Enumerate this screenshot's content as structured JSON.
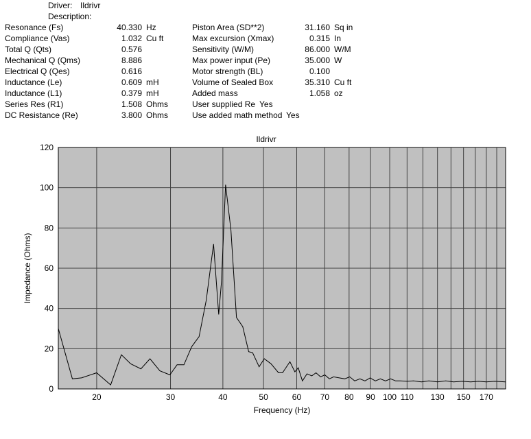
{
  "header": {
    "driver_label": "Driver:",
    "driver_name": "Ildrivr",
    "description_label": "Description:"
  },
  "parameters": {
    "left": [
      {
        "label": "Resonance (Fs)",
        "value": "40.330",
        "unit": "Hz"
      },
      {
        "label": "Compliance (Vas)",
        "value": "1.032",
        "unit": "Cu ft"
      },
      {
        "label": "Total Q (Qts)",
        "value": "0.576"
      },
      {
        "label": "Mechanical Q (Qms)",
        "value": "8.886"
      },
      {
        "label": "Electrical Q (Qes)",
        "value": "0.616"
      },
      {
        "label": "Inductance (Le)",
        "value": "0.609",
        "unit": "mH"
      },
      {
        "label": "Inductance (L1)",
        "value": "0.379",
        "unit": "mH"
      },
      {
        "label": "Series Res (R1)",
        "value": "1.508",
        "unit": "Ohms"
      },
      {
        "label": "DC Resistance (Re)",
        "value": "3.800",
        "unit": "Ohms"
      }
    ],
    "right": [
      {
        "label": "Piston Area (SD**2)",
        "value": "31.160",
        "unit": "Sq in"
      },
      {
        "label": "Max excursion (Xmax)",
        "value": "0.315",
        "unit": "In"
      },
      {
        "label": "Sensitivity (W/M)",
        "value": "86.000",
        "unit": "W/M"
      },
      {
        "label": "Max power input (Pe)",
        "value": "35.000",
        "unit": "W"
      },
      {
        "label": "Motor strength (BL)",
        "value": "0.100"
      },
      {
        "label": "Volume of Sealed Box",
        "value": "35.310",
        "unit": "Cu ft"
      },
      {
        "label": "Added mass",
        "value": "1.058",
        "unit": "oz"
      }
    ],
    "flags": [
      {
        "label": "User supplied Re",
        "value": "Yes"
      },
      {
        "label": "Use added math method",
        "value": "Yes"
      }
    ]
  },
  "chart_data": {
    "type": "line",
    "title": "Ildrivr",
    "x_label": "Frequency (Hz)",
    "y_label": "Impedance (Ohms)",
    "xscale": "log",
    "xlim": [
      16.2,
      189
    ],
    "ylim": [
      0,
      120
    ],
    "xticks": [
      20,
      30,
      40,
      50,
      60,
      70,
      80,
      90,
      100,
      110,
      130,
      150,
      170
    ],
    "xgrid_minor": [
      120,
      140,
      160,
      180
    ],
    "yticks": [
      0,
      20,
      40,
      60,
      80,
      100,
      120
    ],
    "grid": true,
    "background": "#c0c0c0",
    "series": [
      {
        "color": "#000000",
        "x": [
          16.2,
          17.5,
          18.4,
          20,
          21.6,
          22.9,
          24.1,
          25.5,
          26.8,
          28.3,
          29.9,
          31.1,
          32.3,
          33.7,
          35.1,
          36.5,
          38.0,
          39.1,
          39.7,
          40.6,
          41.8,
          43.1,
          44.6,
          46.1,
          47.1,
          48.8,
          50.2,
          52.1,
          54.3,
          55.5,
          57.8,
          59.4,
          60.5,
          61.9,
          63.5,
          65.2,
          66.7,
          68.4,
          70.0,
          71.8,
          73.5,
          75.8,
          78.1,
          80.3,
          82.5,
          84.9,
          87.3,
          89.8,
          92.4,
          95,
          97.7,
          100.5,
          103.3,
          106,
          110,
          114,
          119,
          124,
          130,
          136,
          142,
          149,
          156,
          163,
          170,
          178,
          189
        ],
        "values": [
          30,
          5,
          5.5,
          8,
          2,
          17,
          12.5,
          10,
          15,
          9,
          7,
          12,
          12,
          21,
          26,
          44,
          72,
          37,
          53.5,
          101.5,
          79,
          35.5,
          31,
          18.5,
          18,
          11,
          15,
          12.5,
          8,
          8,
          13.5,
          8.5,
          10.5,
          4,
          7.5,
          6.5,
          8,
          6,
          7,
          5,
          6,
          5.5,
          5,
          6,
          4,
          5,
          4,
          5.5,
          4,
          5,
          4,
          5,
          4,
          4,
          3.8,
          4,
          3.5,
          4,
          3.5,
          4,
          3.5,
          3.8,
          3.5,
          3.8,
          3.5,
          3.8,
          3.5
        ]
      }
    ]
  }
}
